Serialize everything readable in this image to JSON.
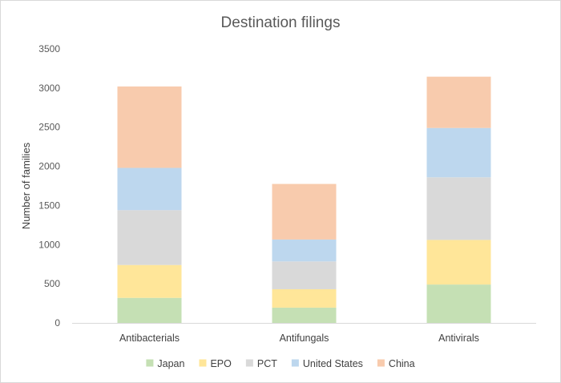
{
  "chart_data": {
    "type": "bar",
    "stacked": true,
    "title": "Destination filings",
    "xlabel": "",
    "ylabel": "Number of families",
    "ylim": [
      0,
      3500
    ],
    "yticks": [
      0,
      500,
      1000,
      1500,
      2000,
      2500,
      3000,
      3500
    ],
    "categories": [
      "Antibacterials",
      "Antifungals",
      "Antivirals"
    ],
    "series": [
      {
        "name": "Japan",
        "color": "#c5e0b4",
        "values": [
          320,
          195,
          490
        ]
      },
      {
        "name": "EPO",
        "color": "#ffe699",
        "values": [
          420,
          235,
          570
        ]
      },
      {
        "name": "PCT",
        "color": "#d9d9d9",
        "values": [
          700,
          355,
          800
        ]
      },
      {
        "name": "United States",
        "color": "#bdd7ee",
        "values": [
          540,
          280,
          630
        ]
      },
      {
        "name": "China",
        "color": "#f8cbad",
        "values": [
          1040,
          710,
          655
        ]
      }
    ],
    "grid": false,
    "legend_position": "bottom"
  }
}
